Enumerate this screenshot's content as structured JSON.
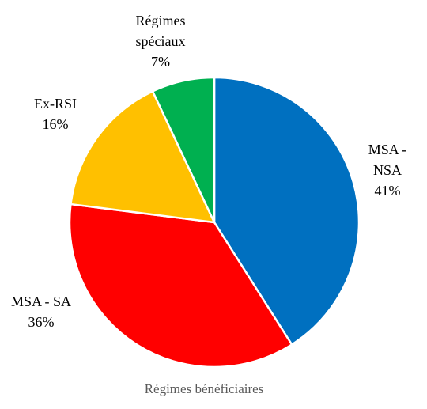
{
  "chart_data": {
    "type": "pie",
    "xlabel": "Régimes bénéficiaires",
    "slices": [
      {
        "label_lines": [
          "MSA -",
          "NSA"
        ],
        "label": "MSA - NSA",
        "value": 41,
        "value_label": "41%",
        "color": "#0070C0"
      },
      {
        "label_lines": [
          "MSA - SA"
        ],
        "label": "MSA - SA",
        "value": 36,
        "value_label": "36%",
        "color": "#FF0000"
      },
      {
        "label_lines": [
          "Ex-RSI"
        ],
        "label": "Ex-RSI",
        "value": 16,
        "value_label": "16%",
        "color": "#FFC000"
      },
      {
        "label_lines": [
          "Régimes",
          "spéciaux"
        ],
        "label": "Régimes spéciaux",
        "value": 7,
        "value_label": "7%",
        "color": "#00B050"
      }
    ],
    "legend": "none",
    "start_angle_deg": 0,
    "direction": "clockwise"
  }
}
